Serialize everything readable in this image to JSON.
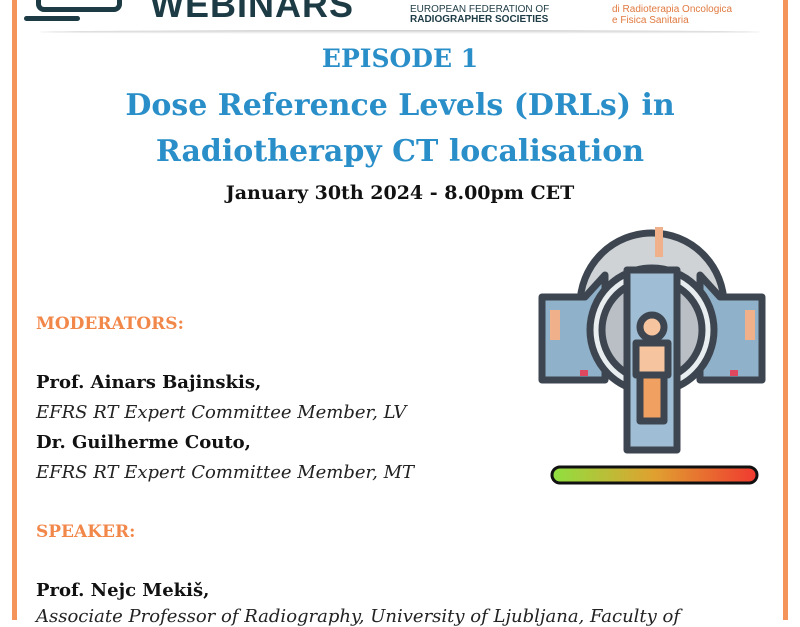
{
  "header": {
    "brand": "WEBINARS",
    "efrs": [
      "EUROPEAN FEDERATION OF",
      "RADIOGRAPHER SOCIETIES"
    ],
    "partner": [
      "di Radioterapia Oncologica",
      "e Fisica Sanitaria"
    ]
  },
  "episode": "EPISODE 1",
  "title": [
    "Dose Reference Levels (DRLs) in",
    "Radiotherapy CT localisation"
  ],
  "date": "January 30th 2024 - 8.00pm CET",
  "moderators_label": "MODERATORS:",
  "moderators": [
    {
      "name": "Prof. Ainars Bajinskis",
      "role": "EFRS RT Expert Committee Member, LV"
    },
    {
      "name": "Dr. Guilherme Couto",
      "role": "EFRS RT Expert Committee Member, MT"
    }
  ],
  "speaker_label": "SPEAKER:",
  "speaker": {
    "name": "Prof. Nejc Mekiš,",
    "role": "Associate Professor of Radiography, University of Ljubljana, Faculty of"
  },
  "colors": {
    "accent_blue": "#2a8fc9",
    "accent_orange": "#f2874a",
    "brand_dark": "#1d3b45"
  },
  "illustration": "ct-scanner-icon"
}
